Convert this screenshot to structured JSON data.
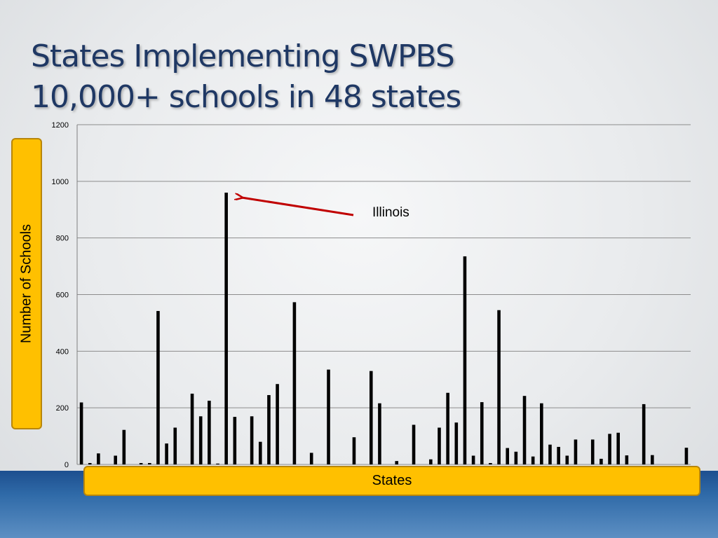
{
  "slide": {
    "title_line1": "States Implementing SWPBS",
    "title_line2": "10,000+ schools in 48 states",
    "colors": {
      "title": "#1f3864",
      "label_box": "#ffc000",
      "arrow": "#c00000",
      "bars": "#000000"
    }
  },
  "chart_data": {
    "type": "bar",
    "ylabel": "Number of Schools",
    "xlabel": "States",
    "ylim": [
      0,
      1200
    ],
    "yticks": [
      0,
      200,
      400,
      600,
      800,
      1000,
      1200
    ],
    "grid": true,
    "annotation": {
      "text": "Illinois",
      "points_to_index": 17
    },
    "values": [
      219,
      5,
      39,
      0,
      31,
      122,
      0,
      5,
      5,
      542,
      74,
      130,
      0,
      250,
      170,
      225,
      3,
      960,
      168,
      0,
      170,
      80,
      245,
      284,
      0,
      573,
      0,
      41,
      0,
      335,
      0,
      0,
      96,
      0,
      330,
      216,
      0,
      12,
      0,
      140,
      0,
      18,
      130,
      253,
      148,
      735,
      31,
      220,
      5,
      545,
      58,
      45,
      242,
      28,
      216,
      70,
      62,
      31,
      88,
      0,
      88,
      20,
      108,
      112,
      32,
      0,
      213,
      33,
      0,
      0,
      0,
      59
    ]
  }
}
